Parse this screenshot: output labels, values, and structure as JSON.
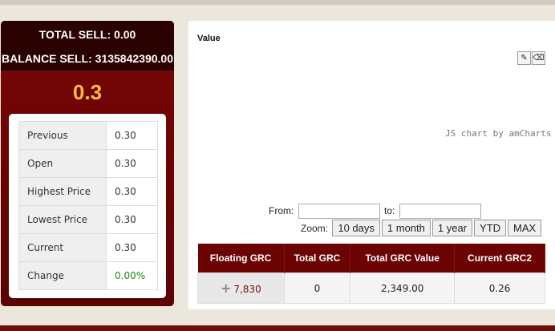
{
  "summary": {
    "total_sell": "TOTAL SELL: 0.00",
    "balance_sell": "BALANCE SELL: 3135842390.00",
    "last_price": "0.3"
  },
  "stats": [
    {
      "label": "Previous",
      "value": "0.30"
    },
    {
      "label": "Open",
      "value": "0.30"
    },
    {
      "label": "Highest Price",
      "value": "0.30"
    },
    {
      "label": "Lowest Price",
      "value": "0.30"
    },
    {
      "label": "Current",
      "value": "0.30"
    },
    {
      "label": "Change",
      "value": "0.00%"
    }
  ],
  "chart": {
    "title": "Value",
    "credit": "JS chart by amCharts",
    "from_label": "From:",
    "to_label": "to:",
    "from_value": "",
    "to_value": "",
    "zoom_label": "Zoom:",
    "zoom_buttons": [
      "10 days",
      "1 month",
      "1 year",
      "YTD",
      "MAX"
    ],
    "tools": [
      "pencil-icon",
      "eraser-icon"
    ]
  },
  "grc_table": {
    "headers": [
      "Floating GRC",
      "Total GRC",
      "Total GRC Value",
      "Current GRC2"
    ],
    "row": {
      "floating": "7,830",
      "total": "0",
      "value": "2,349.00",
      "current": "0.26"
    }
  },
  "colors": {
    "accent": "#6b0303",
    "price": "#f8b947",
    "positive": "#1a8a1a"
  }
}
